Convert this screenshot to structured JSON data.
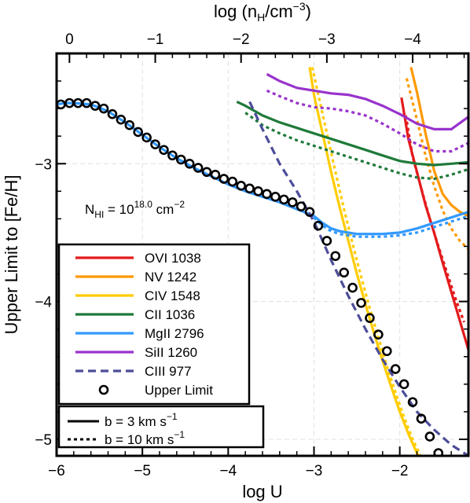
{
  "chart_data": {
    "type": "line",
    "title": "",
    "xlabel": "log U",
    "ylabel": "Upper Limit to [Fe/H]",
    "x2label": "log (n_H/cm^-3)",
    "x2label_parts": {
      "base": "log (n",
      "sub": "H",
      "mid": "/cm",
      "sup": "−3",
      "end": ")"
    },
    "xlim": [
      -6.0,
      -1.2
    ],
    "ylim": [
      -5.12,
      -2.2
    ],
    "x_ticks": [
      -6,
      -5,
      -4,
      -3,
      -2
    ],
    "x_tick_labels": [
      "−6",
      "−5",
      "−4",
      "−3",
      "−2"
    ],
    "y_ticks": [
      -5,
      -4,
      -3
    ],
    "y_tick_labels": [
      "−5",
      "−4",
      "−3"
    ],
    "x2_ticks": [
      0,
      -1,
      -2,
      -3,
      -4,
      -5
    ],
    "x2_tick_labels": [
      "0",
      "−1",
      "−2",
      "−3",
      "−4",
      "−5"
    ],
    "x2_offset": -5.85,
    "x2_scale": -1.0,
    "grid": true,
    "annotation": {
      "base": "N",
      "sub": "HI",
      "mid": " = 10",
      "sup": "18.0",
      "end": " cm",
      "sup2": "−2"
    },
    "legend_position": "bottom-left",
    "series": [
      {
        "name": "OVI 1038",
        "color": "#e41a1c",
        "style": "solid",
        "x": [
          -1.98,
          -1.9,
          -1.8,
          -1.7,
          -1.6,
          -1.5,
          -1.4,
          -1.3,
          -1.2
        ],
        "y": [
          -2.52,
          -2.82,
          -3.06,
          -3.3,
          -3.5,
          -3.72,
          -3.93,
          -4.14,
          -4.35
        ]
      },
      {
        "name": "OVI 1038",
        "color": "#e41a1c",
        "style": "dotted",
        "x": [
          -1.93,
          -1.85,
          -1.75,
          -1.65,
          -1.55,
          -1.45,
          -1.35,
          -1.25
        ],
        "y": [
          -2.65,
          -2.95,
          -3.18,
          -3.4,
          -3.6,
          -3.79,
          -3.98,
          -4.15
        ]
      },
      {
        "name": "NV 1242",
        "color": "#ff9900",
        "style": "solid",
        "x": [
          -1.87,
          -1.8,
          -1.7,
          -1.6,
          -1.5,
          -1.4,
          -1.3,
          -1.2
        ],
        "y": [
          -2.3,
          -2.48,
          -2.78,
          -3.05,
          -3.22,
          -3.3,
          -3.35,
          -3.38
        ]
      },
      {
        "name": "NV 1242",
        "color": "#ff9900",
        "style": "dotted",
        "x": [
          -1.92,
          -1.8,
          -1.7,
          -1.6,
          -1.5,
          -1.4,
          -1.3,
          -1.2
        ],
        "y": [
          -2.38,
          -2.68,
          -2.94,
          -3.16,
          -3.34,
          -3.47,
          -3.56,
          -3.62
        ]
      },
      {
        "name": "CIV 1548",
        "color": "#ffcc00",
        "style": "solid",
        "x": [
          -3.05,
          -3.0,
          -2.9,
          -2.8,
          -2.7,
          -2.6,
          -2.5,
          -2.4,
          -2.3,
          -2.2,
          -2.1,
          -2.0,
          -1.9,
          -1.8,
          -1.75
        ],
        "y": [
          -2.3,
          -2.5,
          -2.78,
          -3.06,
          -3.32,
          -3.56,
          -3.8,
          -4.02,
          -4.23,
          -4.43,
          -4.62,
          -4.8,
          -4.96,
          -5.1,
          -5.15
        ]
      },
      {
        "name": "CIV 1548",
        "color": "#ffcc00",
        "style": "dotted",
        "x": [
          -3.02,
          -2.95,
          -2.85,
          -2.75,
          -2.65,
          -2.55,
          -2.45,
          -2.35,
          -2.25,
          -2.15,
          -2.05,
          -1.95,
          -1.85,
          -1.75
        ],
        "y": [
          -2.3,
          -2.5,
          -2.78,
          -3.06,
          -3.33,
          -3.58,
          -3.82,
          -4.05,
          -4.26,
          -4.47,
          -4.66,
          -4.84,
          -5.0,
          -5.13
        ]
      },
      {
        "name": "CII 1036",
        "color": "#1f7a3a",
        "style": "solid",
        "x": [
          -3.9,
          -3.8,
          -3.6,
          -3.4,
          -3.2,
          -3.0,
          -2.8,
          -2.6,
          -2.4,
          -2.2,
          -2.0,
          -1.8,
          -1.6,
          -1.4,
          -1.2
        ],
        "y": [
          -2.55,
          -2.58,
          -2.65,
          -2.7,
          -2.74,
          -2.78,
          -2.82,
          -2.86,
          -2.9,
          -2.94,
          -2.98,
          -3.0,
          -3.01,
          -3.0,
          -2.99
        ]
      },
      {
        "name": "CII 1036",
        "color": "#1f7a3a",
        "style": "dotted",
        "x": [
          -3.8,
          -3.6,
          -3.4,
          -3.2,
          -3.0,
          -2.8,
          -2.6,
          -2.4,
          -2.2,
          -2.0,
          -1.8,
          -1.6,
          -1.4,
          -1.2
        ],
        "y": [
          -2.63,
          -2.72,
          -2.78,
          -2.83,
          -2.87,
          -2.91,
          -2.95,
          -2.99,
          -3.03,
          -3.07,
          -3.1,
          -3.11,
          -3.08,
          -3.04
        ]
      },
      {
        "name": "MgII 2796",
        "color": "#3399ff",
        "style": "solid",
        "x": [
          -6.0,
          -5.9,
          -5.8,
          -5.6,
          -5.4,
          -5.2,
          -5.0,
          -4.8,
          -4.6,
          -4.4,
          -4.2,
          -4.0,
          -3.8,
          -3.6,
          -3.4,
          -3.2,
          -3.0,
          -2.9,
          -2.8,
          -2.7,
          -2.6,
          -2.5,
          -2.4,
          -2.2,
          -2.0,
          -1.8,
          -1.6,
          -1.4,
          -1.2
        ],
        "y": [
          -2.57,
          -2.56,
          -2.56,
          -2.57,
          -2.62,
          -2.7,
          -2.79,
          -2.88,
          -2.96,
          -3.03,
          -3.09,
          -3.15,
          -3.2,
          -3.24,
          -3.28,
          -3.33,
          -3.38,
          -3.43,
          -3.47,
          -3.49,
          -3.5,
          -3.51,
          -3.51,
          -3.51,
          -3.5,
          -3.47,
          -3.43,
          -3.39,
          -3.35
        ]
      },
      {
        "name": "MgII 2796",
        "color": "#3399ff",
        "style": "dotted",
        "x": [
          -3.0,
          -2.9,
          -2.8,
          -2.7,
          -2.6,
          -2.5,
          -2.4,
          -2.2,
          -2.0,
          -1.8,
          -1.6,
          -1.4,
          -1.2
        ],
        "y": [
          -3.39,
          -3.45,
          -3.49,
          -3.51,
          -3.52,
          -3.53,
          -3.53,
          -3.53,
          -3.52,
          -3.5,
          -3.46,
          -3.42,
          -3.38
        ]
      },
      {
        "name": "SiII 1260",
        "color": "#9933cc",
        "style": "solid",
        "x": [
          -3.55,
          -3.4,
          -3.2,
          -3.0,
          -2.8,
          -2.6,
          -2.4,
          -2.2,
          -2.0,
          -1.8,
          -1.6,
          -1.4,
          -1.2
        ],
        "y": [
          -2.35,
          -2.4,
          -2.45,
          -2.47,
          -2.49,
          -2.5,
          -2.53,
          -2.58,
          -2.64,
          -2.71,
          -2.75,
          -2.75,
          -2.66
        ]
      },
      {
        "name": "SiII 1260",
        "color": "#9933cc",
        "style": "dotted",
        "x": [
          -3.55,
          -3.4,
          -3.2,
          -3.0,
          -2.8,
          -2.6,
          -2.4,
          -2.2,
          -2.0,
          -1.8,
          -1.6,
          -1.4,
          -1.2
        ],
        "y": [
          -2.47,
          -2.51,
          -2.56,
          -2.59,
          -2.6,
          -2.62,
          -2.65,
          -2.71,
          -2.78,
          -2.86,
          -2.91,
          -2.91,
          -2.85
        ]
      },
      {
        "name": "CIII 977",
        "color": "#4d4d99",
        "style": "dashed",
        "x": [
          -3.75,
          -3.6,
          -3.4,
          -3.2,
          -3.0,
          -2.8,
          -2.6,
          -2.4,
          -2.2,
          -2.0,
          -1.8,
          -1.6,
          -1.4,
          -1.2
        ],
        "y": [
          -2.55,
          -2.75,
          -3.0,
          -3.2,
          -3.42,
          -3.7,
          -3.96,
          -4.2,
          -4.42,
          -4.62,
          -4.8,
          -4.93,
          -5.04,
          -5.12
        ]
      }
    ],
    "upper_limit": {
      "name": "Upper Limit",
      "x": [
        -5.95,
        -5.85,
        -5.75,
        -5.65,
        -5.55,
        -5.45,
        -5.35,
        -5.25,
        -5.15,
        -5.05,
        -4.95,
        -4.85,
        -4.75,
        -4.65,
        -4.55,
        -4.45,
        -4.35,
        -4.25,
        -4.15,
        -4.05,
        -3.95,
        -3.85,
        -3.75,
        -3.65,
        -3.55,
        -3.45,
        -3.35,
        -3.25,
        -3.15,
        -3.05,
        -2.95,
        -2.85,
        -2.75,
        -2.65,
        -2.55,
        -2.45,
        -2.35,
        -2.25,
        -2.15,
        -2.05,
        -1.95,
        -1.85,
        -1.75,
        -1.65,
        -1.55
      ],
      "y": [
        -2.57,
        -2.56,
        -2.56,
        -2.56,
        -2.58,
        -2.6,
        -2.64,
        -2.68,
        -2.72,
        -2.77,
        -2.81,
        -2.86,
        -2.9,
        -2.94,
        -2.97,
        -3.0,
        -3.03,
        -3.06,
        -3.08,
        -3.11,
        -3.13,
        -3.16,
        -3.18,
        -3.2,
        -3.22,
        -3.24,
        -3.26,
        -3.28,
        -3.31,
        -3.35,
        -3.45,
        -3.56,
        -3.67,
        -3.79,
        -3.9,
        -4.01,
        -4.12,
        -4.24,
        -4.36,
        -4.49,
        -4.6,
        -4.73,
        -4.85,
        -4.98,
        -5.1
      ]
    },
    "legend_lines": [
      {
        "label": "OVI 1038",
        "color": "#e41a1c",
        "style": "solid"
      },
      {
        "label": "NV 1242",
        "color": "#ff9900",
        "style": "solid"
      },
      {
        "label": "CIV 1548",
        "color": "#ffcc00",
        "style": "solid"
      },
      {
        "label": "CII 1036",
        "color": "#1f7a3a",
        "style": "solid"
      },
      {
        "label": "MgII 2796",
        "color": "#3399ff",
        "style": "solid"
      },
      {
        "label": "SiII 1260",
        "color": "#9933cc",
        "style": "solid"
      },
      {
        "label": "CIII 977",
        "color": "#4d4d99",
        "style": "dashed"
      },
      {
        "label": "Upper Limit",
        "color": "#000000",
        "style": "circle"
      }
    ],
    "legend_b": [
      {
        "label": "b = 3 km s",
        "sup": "−1",
        "style": "solid"
      },
      {
        "label": "b = 10 km s",
        "sup": "−1",
        "style": "dotted"
      }
    ]
  }
}
